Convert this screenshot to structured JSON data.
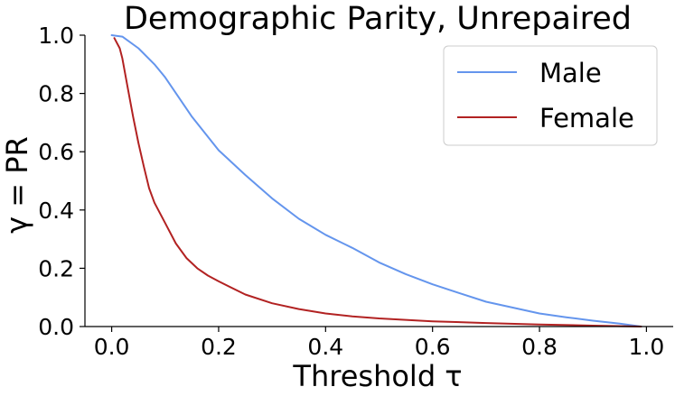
{
  "chart_data": {
    "type": "line",
    "title": "Demographic Parity, Unrepaired",
    "xlabel": "Threshold τ",
    "ylabel": "γ = PR",
    "xlim": [
      -0.05,
      1.05
    ],
    "ylim": [
      0.0,
      1.0
    ],
    "xticks": [
      0.0,
      0.2,
      0.4,
      0.6,
      0.8,
      1.0
    ],
    "yticks": [
      0.0,
      0.2,
      0.4,
      0.6,
      0.8,
      1.0
    ],
    "xtick_labels": [
      "0.0",
      "0.2",
      "0.4",
      "0.6",
      "0.8",
      "1.0"
    ],
    "ytick_labels": [
      "0.0",
      "0.2",
      "0.4",
      "0.6",
      "0.8",
      "1.0"
    ],
    "grid": false,
    "legend_position": "top-right",
    "series": [
      {
        "name": "Male",
        "color": "#6495ed",
        "x": [
          0.0,
          0.02,
          0.05,
          0.08,
          0.1,
          0.15,
          0.2,
          0.25,
          0.3,
          0.35,
          0.4,
          0.45,
          0.5,
          0.55,
          0.6,
          0.65,
          0.7,
          0.75,
          0.8,
          0.85,
          0.9,
          0.95,
          0.99
        ],
        "y": [
          1.0,
          0.995,
          0.955,
          0.9,
          0.855,
          0.72,
          0.605,
          0.52,
          0.44,
          0.37,
          0.315,
          0.27,
          0.22,
          0.18,
          0.145,
          0.115,
          0.085,
          0.065,
          0.045,
          0.032,
          0.02,
          0.01,
          0.0
        ]
      },
      {
        "name": "Female",
        "color": "#b22222",
        "x": [
          0.005,
          0.015,
          0.02,
          0.03,
          0.04,
          0.05,
          0.06,
          0.07,
          0.08,
          0.1,
          0.12,
          0.14,
          0.16,
          0.18,
          0.2,
          0.25,
          0.3,
          0.35,
          0.4,
          0.45,
          0.5,
          0.6,
          0.7,
          0.8,
          0.9,
          0.99
        ],
        "y": [
          0.99,
          0.955,
          0.92,
          0.82,
          0.72,
          0.63,
          0.55,
          0.475,
          0.425,
          0.355,
          0.285,
          0.235,
          0.2,
          0.175,
          0.155,
          0.11,
          0.08,
          0.06,
          0.045,
          0.035,
          0.028,
          0.018,
          0.012,
          0.007,
          0.003,
          0.0
        ]
      }
    ]
  }
}
